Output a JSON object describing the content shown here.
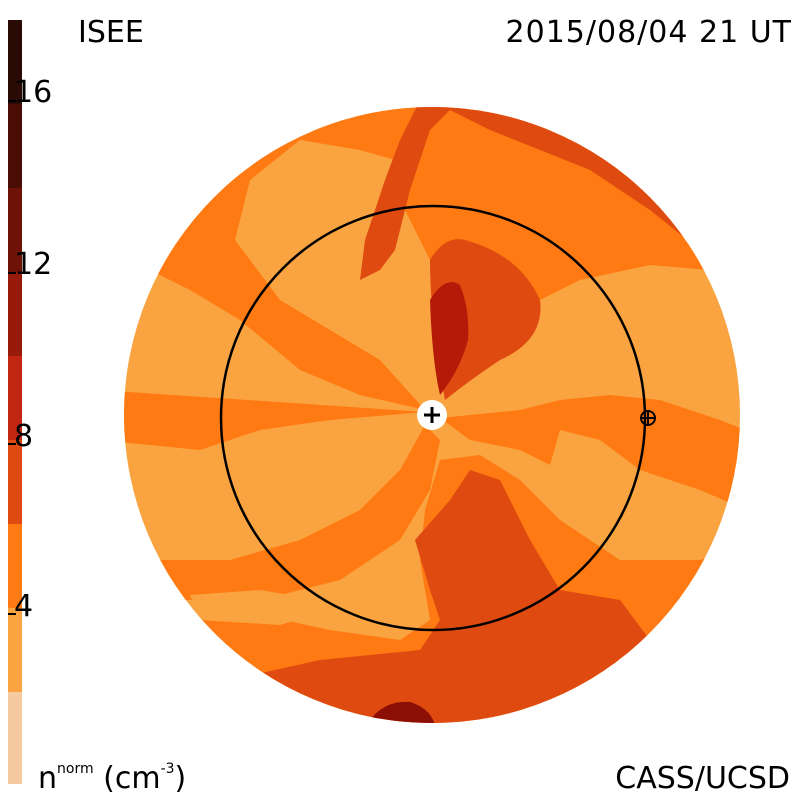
{
  "header": {
    "org": "ISEE",
    "datetime": "2015/08/04 21 UT"
  },
  "footer": {
    "unit_main": "n",
    "unit_sup": "norm",
    "unit_paren": "(cm",
    "unit_exp": "-3",
    "unit_close": ")",
    "credit": "CASS/UCSD"
  },
  "colorbar": {
    "ticks": [
      "16",
      "12",
      "8",
      "4"
    ],
    "colors": [
      "#2a0a04",
      "#4a0d06",
      "#6e1208",
      "#981a0a",
      "#c02612",
      "#df4a10",
      "#ff7a12",
      "#f9a440",
      "#f6caa0"
    ]
  },
  "map": {
    "colors": {
      "level3": "#f9a440",
      "level4": "#ff7a12",
      "level5": "#df4a10",
      "level6": "#b51a08",
      "level7": "#8c0f05"
    },
    "markers": [
      "sun-marker",
      "earth-marker"
    ]
  }
}
